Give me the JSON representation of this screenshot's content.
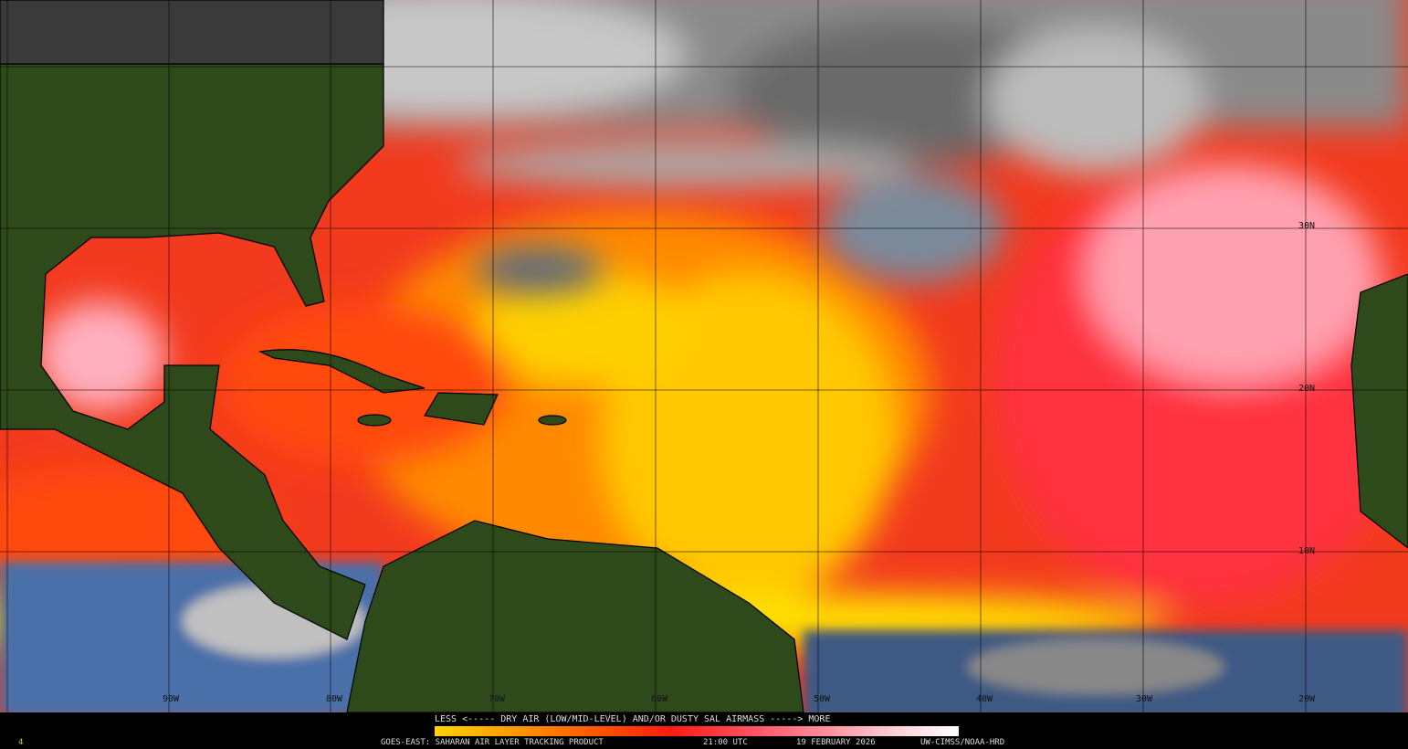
{
  "map": {
    "longitude_labels": [
      "90W",
      "80W",
      "70W",
      "60W",
      "50W",
      "40W",
      "30W",
      "20W"
    ],
    "latitude_labels": [
      "30N",
      "20N",
      "10N"
    ],
    "colors": {
      "land": "#2e4a1a",
      "dry_air_low": "#ffd400",
      "dry_air_mid": "#ff2a10",
      "dry_air_high": "#ffc8d0",
      "clouds": "#b0b0b0",
      "moist": "#4a70a8"
    }
  },
  "legend": {
    "scale_text": "LESS <----- DRY AIR (LOW/MID-LEVEL) AND/OR DUSTY SAL AIRMASS -----> MORE",
    "product": "GOES-EAST: SAHARAN AIR LAYER TRACKING PRODUCT",
    "time": "21:00 UTC",
    "date": "19 FEBRUARY 2026",
    "credit": "UW-CIMSS/NOAA-HRD",
    "corner_mark": "4"
  }
}
